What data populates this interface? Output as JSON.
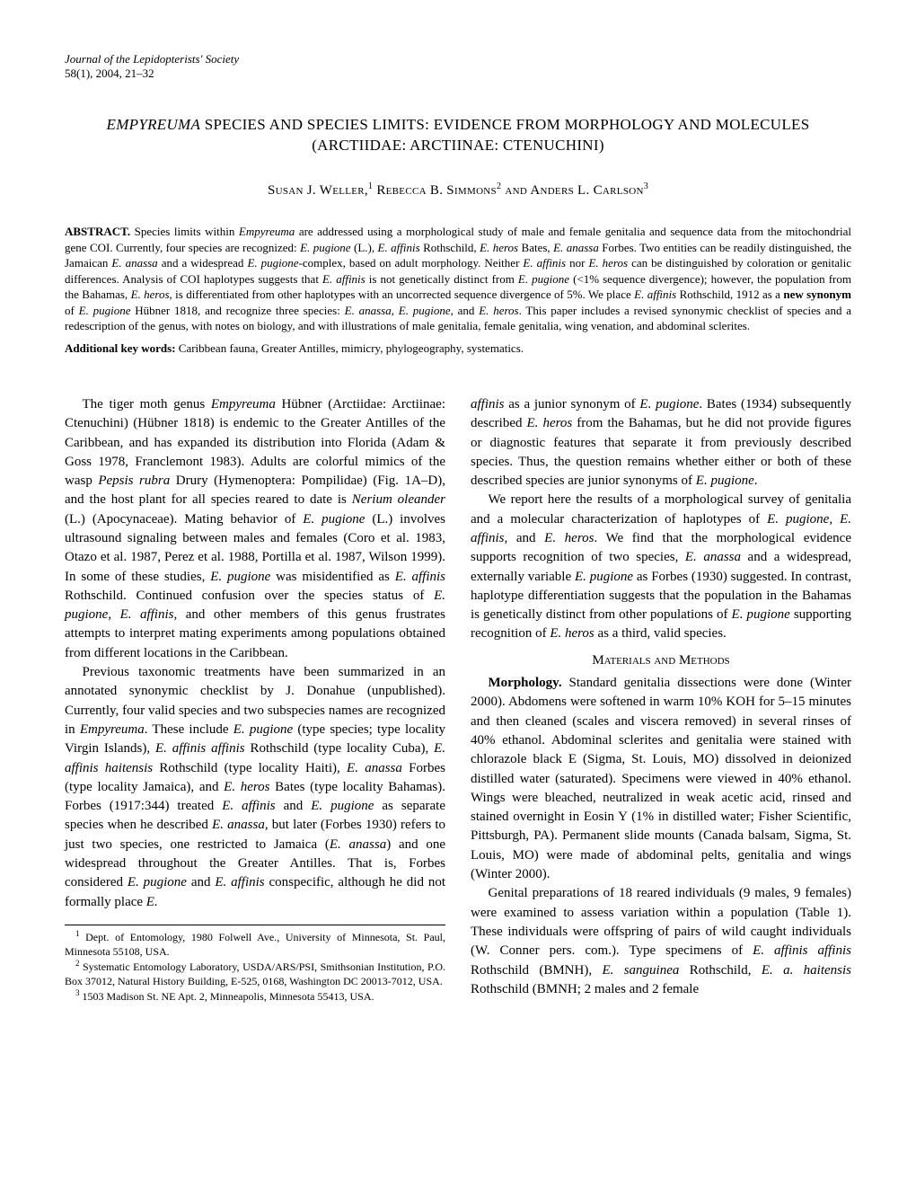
{
  "journal": {
    "line1": "Journal of the Lepidopterists' Society",
    "line2": "58(1), 2004, 21–32"
  },
  "title": {
    "pre_italic": "",
    "italic": "EMPYREUMA",
    "post_italic": " SPECIES AND SPECIES LIMITS: EVIDENCE FROM MORPHOLOGY AND MOLECULES (ARCTIIDAE: ARCTIINAE: CTENUCHINI)"
  },
  "authors": {
    "a1": "Susan J. Weller,",
    "s1": "1",
    "a2": " Rebecca B. Simmons",
    "s2": "2",
    "and": " and ",
    "a3": "Anders L. Carlson",
    "s3": "3"
  },
  "abstract": {
    "label": "ABSTRACT.",
    "text_html": "   Species limits within <span class=\"italic\">Empyreuma</span> are addressed using a morphological study of male and female genitalia and sequence data from the mitochondrial gene COI. Currently, four species are recognized: <span class=\"italic\">E. pugione</span> (L.), <span class=\"italic\">E. affinis</span> Rothschild, <span class=\"italic\">E. heros</span> Bates, <span class=\"italic\">E. anassa</span> Forbes. Two entities can be readily distinguished, the Jamaican <span class=\"italic\">E. anassa</span> and a widespread <span class=\"italic\">E. pugione</span>-complex, based on adult morphology. Neither <span class=\"italic\">E. affinis</span> nor <span class=\"italic\">E. heros</span> can be distinguished by coloration or genitalic differences. Analysis of COI haplotypes suggests that <span class=\"italic\">E. affinis</span> is not genetically distinct from <span class=\"italic\">E. pugione</span> (&lt;1% sequence divergence); however, the population from the Bahamas, <span class=\"italic\">E. heros</span>, is differentiated from other haplotypes with an uncorrected sequence divergence of 5%. We place <span class=\"italic\">E. affinis</span> Rothschild, 1912 as a <span class=\"bold\">new synonym</span> of <span class=\"italic\">E. pugione</span> Hübner 1818, and recognize three species: <span class=\"italic\">E. anassa</span>, <span class=\"italic\">E. pugione</span>, and <span class=\"italic\">E. heros</span>. This paper includes a revised synonymic checklist of species and a redescription of the genus, with notes on biology, and with illustrations of male genitalia, female genitalia, wing venation, and abdominal sclerites."
  },
  "keywords": {
    "label": "Additional key words:",
    "text": "   Caribbean fauna, Greater Antilles, mimicry, phylogeography, systematics."
  },
  "col_left": {
    "p1_html": "The tiger moth genus <span class=\"italic\">Empyreuma</span> Hübner (Arctiidae: Arctiinae: Ctenuchini) (Hübner 1818) is endemic to the Greater Antilles of the Caribbean, and has expanded its distribution into Florida (Adam &amp; Goss 1978, Franclemont 1983). Adults are colorful mimics of the wasp <span class=\"italic\">Pepsis rubra</span> Drury (Hymenoptera: Pompilidae) (Fig. 1A–D), and the host plant for all species reared to date is <span class=\"italic\">Nerium oleander</span> (L.) (Apocynaceae). Mating behavior of <span class=\"italic\">E. pugione</span> (L.) involves ultrasound signaling between males and females (Coro et al. 1983, Otazo et al. 1987, Perez et al. 1988, Portilla et al. 1987, Wilson 1999). In some of these studies, <span class=\"italic\">E. pugione</span> was misidentified as <span class=\"italic\">E. affinis</span> Rothschild. Continued confusion over the species status of <span class=\"italic\">E. pugione</span>, <span class=\"italic\">E. affinis</span>, and other members of this genus frustrates attempts to interpret mating experiments among populations obtained from different locations in the Caribbean.",
    "p2_html": "Previous taxonomic treatments have been summarized in an annotated synonymic checklist by J. Donahue (unpublished). Currently, four valid species and two subspecies names are recognized in <span class=\"italic\">Empyreuma</span>. These include <span class=\"italic\">E. pugione</span> (type species; type locality Virgin Islands), <span class=\"italic\">E. affinis affinis</span> Rothschild (type locality Cuba), <span class=\"italic\">E. affinis haitensis</span> Rothschild (type locality Haiti), <span class=\"italic\">E. anassa</span> Forbes (type locality Jamaica), and <span class=\"italic\">E. heros</span> Bates (type locality Bahamas). Forbes (1917:344) treated <span class=\"italic\">E. affinis</span> and <span class=\"italic\">E. pugione</span> as separate species when he described <span class=\"italic\">E. anassa</span>, but later (Forbes 1930) refers to just two species, one restricted to Jamaica (<span class=\"italic\">E. anassa</span>) and one widespread throughout the Greater Antilles. That is, Forbes considered <span class=\"italic\">E. pugione</span> and <span class=\"italic\">E. affinis</span> conspecific, although he did not formally place <span class=\"italic\">E.</span>"
  },
  "col_right": {
    "p1_html": "<span class=\"italic\">affinis</span> as a junior synonym of <span class=\"italic\">E. pugione</span>. Bates (1934) subsequently described <span class=\"italic\">E. heros</span> from the Bahamas, but he did not provide figures or diagnostic features that separate it from previously described species. Thus, the question remains whether either or both of these described species are junior synonyms of <span class=\"italic\">E. pugione</span>.",
    "p2_html": "We report here the results of a morphological survey of genitalia and a molecular characterization of haplotypes of <span class=\"italic\">E. pugione</span>, <span class=\"italic\">E. affinis</span>, and <span class=\"italic\">E. heros</span>. We find that the morphological evidence supports recognition of two species, <span class=\"italic\">E. anassa</span> and a widespread, externally variable <span class=\"italic\">E. pugione</span> as Forbes (1930) suggested. In contrast, haplotype differentiation suggests that the population in the Bahamas is genetically distinct from other populations of <span class=\"italic\">E. pugione</span> supporting recognition of <span class=\"italic\">E. heros</span> as a third, valid species.",
    "section_head": "Materials and Methods",
    "p3_html": "<span class=\"bold\">Morphology.</span> Standard genitalia dissections were done (Winter 2000). Abdomens were softened in warm 10% KOH for 5–15 minutes and then cleaned (scales and viscera removed) in several rinses of 40% ethanol. Abdominal sclerites and genitalia were stained with chlorazole black E (Sigma, St. Louis, MO) dissolved in deionized distilled water (saturated). Specimens were viewed in 40% ethanol. Wings were bleached, neutralized in weak acetic acid, rinsed and stained overnight in Eosin Y (1% in distilled water; Fisher Scientific, Pittsburgh, PA). Permanent slide mounts (Canada balsam, Sigma, St. Louis, MO) were made of abdominal pelts, genitalia and wings (Winter 2000).",
    "p4_html": "Genital preparations of 18 reared individuals (9 males, 9 females) were examined to assess variation within a population (Table 1). These individuals were offspring of pairs of wild caught individuals (W. Conner pers. com.). Type specimens of <span class=\"italic\">E. affinis affinis</span> Rothschild (BMNH), <span class=\"italic\">E. sanguinea</span> Rothschild, <span class=\"italic\">E. a. haitensis</span> Rothschild (BMNH; 2 males and 2 female"
  },
  "footnotes": {
    "f1_html": "<sup>1</sup> Dept. of Entomology, 1980 Folwell Ave., University of Minnesota, St. Paul, Minnesota 55108, USA.",
    "f2_html": "<sup>2</sup> Systematic Entomology Laboratory, USDA/ARS/PSI, Smithsonian Institution, P.O. Box 37012, Natural History Building, E-525, 0168, Washington DC 20013-7012, USA.",
    "f3_html": "<sup>3</sup> 1503 Madison St. NE Apt. 2, Minneapolis, Minnesota 55413, USA."
  }
}
